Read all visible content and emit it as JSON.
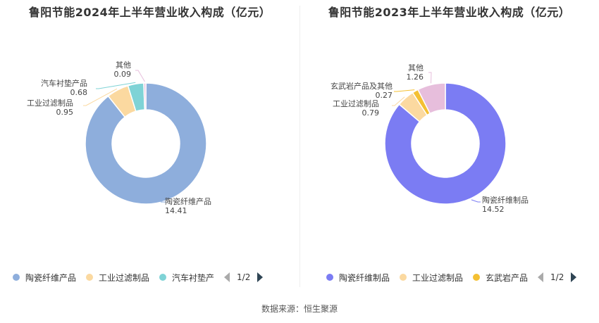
{
  "chart_data": [
    {
      "type": "pie",
      "title": "鲁阳节能2024年上半年营业收入构成（亿元）",
      "categories": [
        "陶瓷纤维产品",
        "工业过滤制品",
        "汽车衬垫产品",
        "其他"
      ],
      "values": [
        14.41,
        0.95,
        0.68,
        0.09
      ],
      "value_labels": [
        "14.41",
        "0.95",
        "0.68",
        "0.09"
      ],
      "colors": [
        "#8eaedc",
        "#fbd9a0",
        "#7fd3d6",
        "#e7bedc"
      ],
      "legend": {
        "items": [
          "陶瓷纤维产品",
          "工业过滤制品",
          "汽车衬垫产"
        ],
        "page": "1/2",
        "placement": "bottom"
      }
    },
    {
      "type": "pie",
      "title": "鲁阳节能2023年上半年营业收入构成（亿元）",
      "categories": [
        "陶瓷纤维制品",
        "工业过滤制品",
        "玄武岩产品及其他",
        "其他"
      ],
      "values": [
        14.52,
        0.79,
        0.27,
        1.26
      ],
      "value_labels": [
        "14.52",
        "0.79",
        "0.27",
        "1.26"
      ],
      "colors": [
        "#7b7cf3",
        "#fbd9a0",
        "#f4c033",
        "#e7bedc"
      ],
      "legend": {
        "items": [
          "陶瓷纤维制品",
          "工业过滤制品",
          "玄武岩产品"
        ],
        "page": "1/2",
        "placement": "bottom"
      }
    }
  ],
  "footer": {
    "source": "数据来源：恒生聚源"
  }
}
